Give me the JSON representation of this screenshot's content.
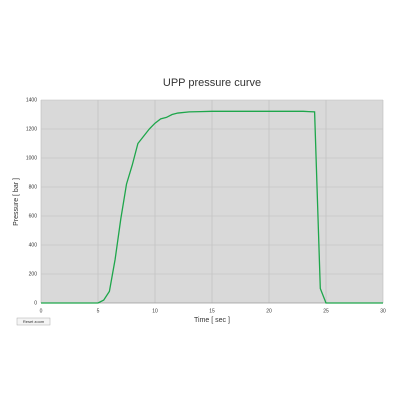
{
  "chart_data": {
    "type": "line",
    "title": "UPP pressure curve",
    "x_label": "Time [ sec ]",
    "y_label": "Pressure [ bar ]",
    "x": [
      0,
      5,
      5.5,
      6,
      6.5,
      7,
      7.5,
      8,
      8.5,
      9,
      9.5,
      10,
      10.5,
      11,
      11.5,
      12,
      13,
      14,
      15,
      20,
      23,
      23.5,
      24,
      24.5,
      25,
      30
    ],
    "series": [
      {
        "name": "Pressure",
        "color": "#1ea64b",
        "values": [
          0,
          0,
          20,
          80,
          300,
          580,
          820,
          950,
          1100,
          1150,
          1200,
          1240,
          1270,
          1280,
          1300,
          1310,
          1318,
          1320,
          1322,
          1322,
          1322,
          1320,
          1318,
          100,
          0,
          0
        ]
      }
    ],
    "xlim": [
      0,
      30
    ],
    "xticks": [
      0,
      5,
      10,
      15,
      20,
      25,
      30
    ],
    "ylim": [
      0,
      1400
    ],
    "yticks": [
      0,
      200,
      400,
      600,
      800,
      1000,
      1200,
      1400
    ],
    "grid": true,
    "background": "#d9d9d9",
    "button": "Reset zoom"
  }
}
